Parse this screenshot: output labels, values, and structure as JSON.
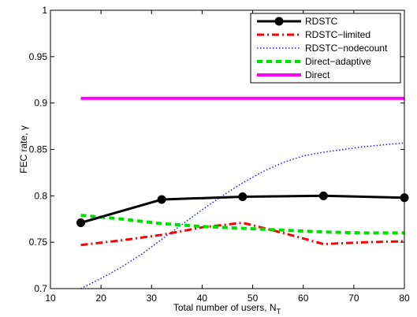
{
  "chart_data": {
    "type": "line",
    "title": "",
    "xlabel": "Total number of users, N",
    "xlabel_sub": "T",
    "ylabel": "FEC rate, γ",
    "xlim": [
      10,
      80
    ],
    "ylim": [
      0.7,
      1.0
    ],
    "xticks": [
      10,
      20,
      30,
      40,
      50,
      60,
      70,
      80
    ],
    "yticks": [
      0.7,
      0.75,
      0.8,
      0.85,
      0.9,
      0.95,
      1
    ],
    "ytick_labels": [
      "0.7",
      "0.75",
      "0.8",
      "0.85",
      "0.9",
      "0.95",
      "1"
    ],
    "grid": false,
    "legend_position": "top-right",
    "series": [
      {
        "name": "RDSTC",
        "color": "#000000",
        "style": "solid-markers",
        "x": [
          16,
          32,
          48,
          64,
          80
        ],
        "y": [
          0.771,
          0.796,
          0.799,
          0.8,
          0.798
        ]
      },
      {
        "name": "RDSTC−limited",
        "color": "#ff0000",
        "style": "dashdot",
        "x": [
          16,
          24,
          32,
          40,
          48,
          56,
          64,
          72,
          80
        ],
        "y": [
          0.747,
          0.752,
          0.758,
          0.766,
          0.771,
          0.76,
          0.748,
          0.75,
          0.751
        ]
      },
      {
        "name": "RDSTC−nodecount",
        "color": "#1a1aff",
        "style": "dotted",
        "x": [
          16,
          20,
          24,
          28,
          32,
          36,
          40,
          44,
          48,
          52,
          56,
          60,
          64,
          68,
          72,
          76,
          80
        ],
        "y": [
          0.7,
          0.711,
          0.723,
          0.737,
          0.753,
          0.769,
          0.785,
          0.8,
          0.814,
          0.826,
          0.836,
          0.843,
          0.847,
          0.85,
          0.853,
          0.855,
          0.857
        ]
      },
      {
        "name": "Direct−adaptive",
        "color": "#00dd00",
        "style": "dashed",
        "x": [
          16,
          24,
          32,
          40,
          48,
          56,
          64,
          72,
          80
        ],
        "y": [
          0.779,
          0.775,
          0.77,
          0.767,
          0.765,
          0.763,
          0.761,
          0.76,
          0.76
        ]
      },
      {
        "name": "Direct",
        "color": "#ff00ff",
        "style": "solid",
        "x": [
          16,
          80
        ],
        "y": [
          0.905,
          0.905
        ]
      }
    ]
  }
}
